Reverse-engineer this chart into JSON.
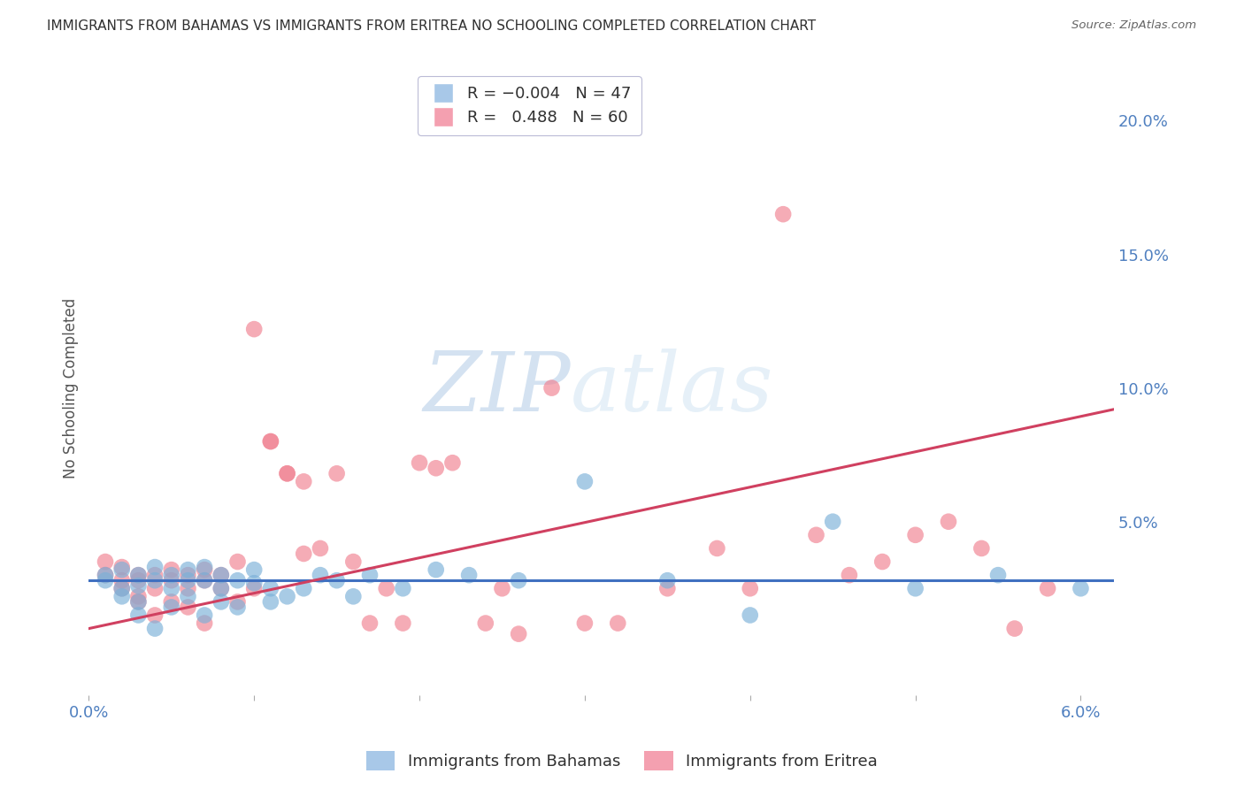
{
  "title": "IMMIGRANTS FROM BAHAMAS VS IMMIGRANTS FROM ERITREA NO SCHOOLING COMPLETED CORRELATION CHART",
  "source": "Source: ZipAtlas.com",
  "ylabel": "No Schooling Completed",
  "xlim": [
    0.0,
    0.062
  ],
  "ylim": [
    -0.015,
    0.215
  ],
  "right_ytick_vals": [
    0.0,
    0.05,
    0.1,
    0.15,
    0.2
  ],
  "right_yticklabels": [
    "",
    "5.0%",
    "10.0%",
    "15.0%",
    "20.0%"
  ],
  "bahamas_color": "#7ab0d8",
  "eritrea_color": "#f08090",
  "bahamas_trend_color": "#4070c0",
  "eritrea_trend_color": "#d04060",
  "background_color": "#ffffff",
  "grid_color": "#c0c0d0",
  "axis_label_color": "#5080c0",
  "watermark_zip": "ZIP",
  "watermark_atlas": "atlas",
  "bahamas_x": [
    0.001,
    0.001,
    0.002,
    0.002,
    0.002,
    0.003,
    0.003,
    0.003,
    0.003,
    0.004,
    0.004,
    0.004,
    0.005,
    0.005,
    0.005,
    0.006,
    0.006,
    0.006,
    0.007,
    0.007,
    0.007,
    0.008,
    0.008,
    0.008,
    0.009,
    0.009,
    0.01,
    0.01,
    0.011,
    0.011,
    0.012,
    0.013,
    0.014,
    0.015,
    0.016,
    0.017,
    0.019,
    0.021,
    0.023,
    0.026,
    0.03,
    0.035,
    0.04,
    0.045,
    0.05,
    0.055,
    0.06
  ],
  "bahamas_y": [
    0.03,
    0.028,
    0.025,
    0.032,
    0.022,
    0.03,
    0.026,
    0.02,
    0.015,
    0.028,
    0.033,
    0.01,
    0.025,
    0.03,
    0.018,
    0.032,
    0.022,
    0.028,
    0.028,
    0.033,
    0.015,
    0.025,
    0.03,
    0.02,
    0.028,
    0.018,
    0.027,
    0.032,
    0.025,
    0.02,
    0.022,
    0.025,
    0.03,
    0.028,
    0.022,
    0.03,
    0.025,
    0.032,
    0.03,
    0.028,
    0.065,
    0.028,
    0.015,
    0.05,
    0.025,
    0.03,
    0.025
  ],
  "eritrea_x": [
    0.001,
    0.001,
    0.002,
    0.002,
    0.002,
    0.003,
    0.003,
    0.003,
    0.003,
    0.004,
    0.004,
    0.004,
    0.005,
    0.005,
    0.005,
    0.006,
    0.006,
    0.006,
    0.007,
    0.007,
    0.007,
    0.008,
    0.008,
    0.009,
    0.009,
    0.01,
    0.01,
    0.011,
    0.011,
    0.012,
    0.012,
    0.013,
    0.013,
    0.014,
    0.015,
    0.016,
    0.017,
    0.018,
    0.019,
    0.02,
    0.021,
    0.022,
    0.024,
    0.025,
    0.026,
    0.028,
    0.03,
    0.032,
    0.035,
    0.038,
    0.04,
    0.042,
    0.044,
    0.046,
    0.048,
    0.05,
    0.052,
    0.054,
    0.056,
    0.058
  ],
  "eritrea_y": [
    0.03,
    0.035,
    0.028,
    0.033,
    0.025,
    0.03,
    0.022,
    0.028,
    0.02,
    0.03,
    0.025,
    0.015,
    0.032,
    0.028,
    0.02,
    0.03,
    0.025,
    0.018,
    0.028,
    0.032,
    0.012,
    0.025,
    0.03,
    0.035,
    0.02,
    0.025,
    0.122,
    0.08,
    0.08,
    0.068,
    0.068,
    0.065,
    0.038,
    0.04,
    0.068,
    0.035,
    0.012,
    0.025,
    0.012,
    0.072,
    0.07,
    0.072,
    0.012,
    0.025,
    0.008,
    0.1,
    0.012,
    0.012,
    0.025,
    0.04,
    0.025,
    0.165,
    0.045,
    0.03,
    0.035,
    0.045,
    0.05,
    0.04,
    0.01,
    0.025
  ],
  "bahamas_trend_x": [
    0.0,
    0.062
  ],
  "bahamas_trend_y": [
    0.028,
    0.028
  ],
  "eritrea_trend_x": [
    0.0,
    0.062
  ],
  "eritrea_trend_y": [
    0.01,
    0.092
  ]
}
